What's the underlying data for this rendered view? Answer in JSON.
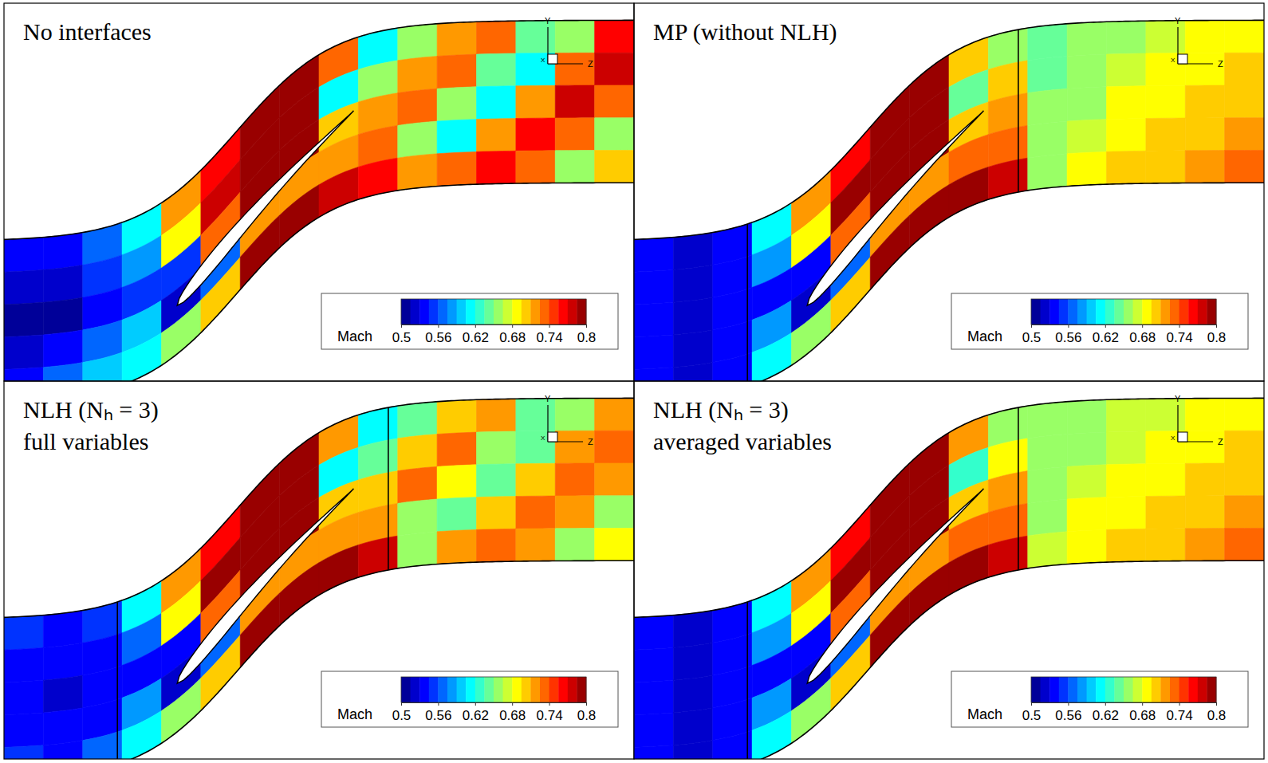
{
  "chart_data": [
    {
      "type": "contour",
      "title": "No interfaces",
      "colorbar": {
        "label": "Mach",
        "range": [
          0.5,
          0.8
        ],
        "ticks": [
          0.5,
          0.56,
          0.62,
          0.68,
          0.74,
          0.8
        ]
      },
      "triad": [
        "Y",
        "Z",
        "X"
      ],
      "cells": [
        [
          0.53,
          0.52,
          0.51,
          0.52,
          0.53
        ],
        [
          0.54,
          0.52,
          0.51,
          0.53,
          0.56
        ],
        [
          0.56,
          0.55,
          0.53,
          0.56,
          0.6
        ],
        [
          0.62,
          0.58,
          0.55,
          0.6,
          0.62
        ],
        [
          0.72,
          0.68,
          0.55,
          0.52,
          0.66
        ],
        [
          0.76,
          0.78,
          0.74,
          0.56,
          0.7
        ],
        [
          0.82,
          0.82,
          0.8,
          0.72,
          0.8
        ],
        [
          0.82,
          0.82,
          0.8,
          0.72,
          0.82
        ],
        [
          0.74,
          0.62,
          0.7,
          0.72,
          0.78
        ],
        [
          0.62,
          0.66,
          0.72,
          0.74,
          0.76
        ],
        [
          0.66,
          0.72,
          0.74,
          0.66,
          0.72
        ],
        [
          0.72,
          0.74,
          0.66,
          0.62,
          0.74
        ],
        [
          0.74,
          0.64,
          0.62,
          0.72,
          0.76
        ],
        [
          0.64,
          0.62,
          0.72,
          0.76,
          0.74
        ],
        [
          0.66,
          0.74,
          0.78,
          0.74,
          0.66
        ],
        [
          0.76,
          0.78,
          0.74,
          0.66,
          0.7
        ]
      ]
    },
    {
      "type": "contour",
      "title": "MP (without NLH)",
      "colorbar": {
        "label": "Mach",
        "range": [
          0.5,
          0.8
        ],
        "ticks": [
          0.5,
          0.56,
          0.62,
          0.68,
          0.74,
          0.8
        ]
      },
      "triad": [
        "Y",
        "Z",
        "X"
      ],
      "cells": [
        [
          0.53,
          0.53,
          0.53,
          0.53,
          0.53
        ],
        [
          0.52,
          0.52,
          0.52,
          0.52,
          0.52
        ],
        [
          0.54,
          0.54,
          0.54,
          0.54,
          0.54
        ],
        [
          0.62,
          0.58,
          0.54,
          0.58,
          0.62
        ],
        [
          0.72,
          0.68,
          0.54,
          0.52,
          0.66
        ],
        [
          0.76,
          0.79,
          0.74,
          0.56,
          0.7
        ],
        [
          0.82,
          0.82,
          0.8,
          0.72,
          0.8
        ],
        [
          0.82,
          0.82,
          0.8,
          0.72,
          0.82
        ],
        [
          0.7,
          0.64,
          0.7,
          0.74,
          0.8
        ],
        [
          0.66,
          0.7,
          0.72,
          0.74,
          0.78
        ],
        [
          0.64,
          0.64,
          0.65,
          0.66,
          0.66
        ],
        [
          0.65,
          0.65,
          0.66,
          0.67,
          0.68
        ],
        [
          0.66,
          0.67,
          0.68,
          0.69,
          0.7
        ],
        [
          0.67,
          0.68,
          0.69,
          0.7,
          0.71
        ],
        [
          0.68,
          0.69,
          0.7,
          0.71,
          0.72
        ],
        [
          0.69,
          0.7,
          0.71,
          0.72,
          0.73
        ]
      ]
    },
    {
      "type": "contour",
      "title": "NLH (Nₕ = 3)",
      "subtitle": "full variables",
      "colorbar": {
        "label": "Mach",
        "range": [
          0.5,
          0.8
        ],
        "ticks": [
          0.5,
          0.56,
          0.62,
          0.68,
          0.74,
          0.8
        ]
      },
      "triad": [
        "Y",
        "Z",
        "X"
      ],
      "cells": [
        [
          0.55,
          0.54,
          0.53,
          0.54,
          0.55
        ],
        [
          0.54,
          0.53,
          0.52,
          0.53,
          0.54
        ],
        [
          0.55,
          0.54,
          0.53,
          0.54,
          0.56
        ],
        [
          0.62,
          0.57,
          0.53,
          0.58,
          0.62
        ],
        [
          0.72,
          0.68,
          0.54,
          0.52,
          0.66
        ],
        [
          0.76,
          0.79,
          0.74,
          0.56,
          0.7
        ],
        [
          0.82,
          0.82,
          0.8,
          0.72,
          0.8
        ],
        [
          0.82,
          0.82,
          0.8,
          0.72,
          0.82
        ],
        [
          0.72,
          0.62,
          0.7,
          0.72,
          0.8
        ],
        [
          0.62,
          0.64,
          0.7,
          0.72,
          0.78
        ],
        [
          0.64,
          0.7,
          0.74,
          0.66,
          0.66
        ],
        [
          0.7,
          0.74,
          0.68,
          0.64,
          0.72
        ],
        [
          0.72,
          0.66,
          0.64,
          0.7,
          0.74
        ],
        [
          0.64,
          0.64,
          0.7,
          0.74,
          0.72
        ],
        [
          0.66,
          0.72,
          0.74,
          0.72,
          0.66
        ],
        [
          0.72,
          0.74,
          0.72,
          0.66,
          0.68
        ]
      ]
    },
    {
      "type": "contour",
      "title": "NLH (Nₕ = 3)",
      "subtitle": "averaged variables",
      "colorbar": {
        "label": "Mach",
        "range": [
          0.5,
          0.8
        ],
        "ticks": [
          0.5,
          0.56,
          0.62,
          0.68,
          0.74,
          0.8
        ]
      },
      "triad": [
        "Y",
        "Z",
        "X"
      ],
      "cells": [
        [
          0.53,
          0.53,
          0.53,
          0.53,
          0.53
        ],
        [
          0.52,
          0.52,
          0.52,
          0.52,
          0.52
        ],
        [
          0.54,
          0.54,
          0.54,
          0.54,
          0.54
        ],
        [
          0.62,
          0.58,
          0.54,
          0.58,
          0.62
        ],
        [
          0.72,
          0.68,
          0.54,
          0.52,
          0.66
        ],
        [
          0.76,
          0.79,
          0.74,
          0.56,
          0.7
        ],
        [
          0.82,
          0.82,
          0.8,
          0.72,
          0.8
        ],
        [
          0.82,
          0.82,
          0.8,
          0.72,
          0.82
        ],
        [
          0.72,
          0.63,
          0.7,
          0.73,
          0.8
        ],
        [
          0.65,
          0.69,
          0.72,
          0.74,
          0.78
        ],
        [
          0.65,
          0.65,
          0.66,
          0.66,
          0.67
        ],
        [
          0.66,
          0.66,
          0.67,
          0.68,
          0.69
        ],
        [
          0.67,
          0.67,
          0.68,
          0.69,
          0.7
        ],
        [
          0.67,
          0.68,
          0.69,
          0.7,
          0.71
        ],
        [
          0.68,
          0.69,
          0.7,
          0.71,
          0.72
        ],
        [
          0.69,
          0.7,
          0.71,
          0.72,
          0.73
        ]
      ]
    }
  ]
}
